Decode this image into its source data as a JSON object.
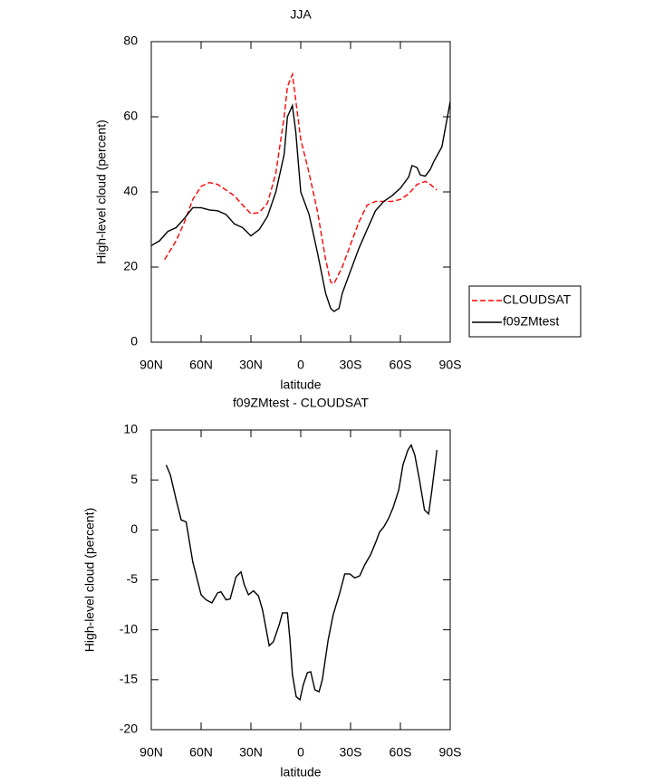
{
  "chart_data": [
    {
      "type": "line",
      "title": "JJA",
      "xlabel": "latitude",
      "ylabel": "High-level cloud (percent)",
      "xlim": [
        90,
        -90
      ],
      "xticks": [
        {
          "value": 90,
          "label": "90N"
        },
        {
          "value": 60,
          "label": "60N"
        },
        {
          "value": 30,
          "label": "30N"
        },
        0,
        {
          "value": -30,
          "label": "30S"
        },
        {
          "value": -60,
          "label": "60S"
        },
        {
          "value": -90,
          "label": "90S"
        }
      ],
      "ylim": [
        0,
        80
      ],
      "yticks": [
        0,
        20,
        40,
        60,
        80
      ],
      "legend": "right",
      "series": [
        {
          "name": "CLOUDSAT",
          "color": "#ff0000",
          "style": "dashed",
          "x": [
            82,
            75,
            70,
            65,
            60,
            55,
            50,
            45,
            40,
            35,
            30,
            25,
            20,
            15,
            10,
            8,
            5,
            0,
            -5,
            -10,
            -15,
            -18,
            -20,
            -25,
            -30,
            -35,
            -40,
            -45,
            -50,
            -55,
            -60,
            -65,
            -70,
            -75,
            -78,
            -82
          ],
          "values": [
            22,
            27,
            32,
            38,
            41.5,
            42.5,
            42,
            40.5,
            39,
            36.5,
            34.2,
            34.5,
            37,
            45,
            60,
            68,
            71.3,
            54,
            45,
            35,
            22,
            16,
            15.6,
            20,
            26,
            32,
            36.5,
            37.5,
            37.5,
            37.5,
            38,
            39.5,
            42,
            42.8,
            42,
            40.5
          ]
        },
        {
          "name": "f09ZMtest",
          "color": "#000000",
          "style": "solid",
          "x": [
            90,
            85,
            80,
            75,
            70,
            65,
            60,
            55,
            50,
            45,
            40,
            35,
            30,
            25,
            20,
            15,
            10,
            8,
            5,
            3,
            0,
            -5,
            -10,
            -15,
            -18,
            -20,
            -23,
            -25,
            -30,
            -35,
            -40,
            -45,
            -50,
            -55,
            -60,
            -65,
            -67,
            -70,
            -72,
            -75,
            -78,
            -80,
            -85,
            -90
          ],
          "values": [
            25.7,
            27,
            29.5,
            30.5,
            33,
            35.8,
            35.8,
            35.2,
            35,
            34,
            31.5,
            30.5,
            28.3,
            30,
            33.5,
            40,
            50,
            60,
            63,
            56,
            40,
            34,
            24,
            13,
            9,
            8.2,
            9,
            13,
            19,
            25,
            30,
            35,
            37.5,
            39,
            41,
            44,
            47,
            46.5,
            44.5,
            44.2,
            46,
            48,
            52,
            64
          ]
        }
      ]
    },
    {
      "type": "line",
      "title": "f09ZMtest - CLOUDSAT",
      "xlabel": "latitude",
      "ylabel": "High-level cloud (percent)",
      "xlim": [
        90,
        -90
      ],
      "xticks": [
        {
          "value": 90,
          "label": "90N"
        },
        {
          "value": 60,
          "label": "60N"
        },
        {
          "value": 30,
          "label": "30N"
        },
        0,
        {
          "value": -30,
          "label": "30S"
        },
        {
          "value": -60,
          "label": "60S"
        },
        {
          "value": -90,
          "label": "90S"
        }
      ],
      "ylim": [
        -20,
        10
      ],
      "yticks": [
        -20,
        -15,
        -10,
        -5,
        0,
        5,
        10
      ],
      "series": [
        {
          "color": "#000000",
          "style": "solid",
          "x": [
            81,
            78.5,
            75,
            72,
            69,
            65,
            60,
            57,
            53.5,
            50,
            48,
            45,
            42.5,
            39,
            36,
            34,
            31.5,
            28.5,
            25.5,
            23,
            19,
            16.5,
            13,
            11,
            8,
            6.5,
            5,
            2.7,
            0.5,
            -1.5,
            -4,
            -6,
            -8.5,
            -11,
            -13,
            -16.5,
            -19.5,
            -23.5,
            -26.5,
            -29.5,
            -32.5,
            -35.5,
            -38.5,
            -42,
            -45,
            -47.5,
            -50,
            -53,
            -55.5,
            -59,
            -61.5,
            -64.5,
            -66.5,
            -68.7,
            -71.5,
            -74.5,
            -77,
            -79,
            -82
          ],
          "values": [
            6.5,
            5.5,
            3,
            1,
            0.8,
            -3.2,
            -6.5,
            -7,
            -7.3,
            -6.3,
            -6.2,
            -7,
            -6.9,
            -4.7,
            -4.2,
            -5.5,
            -6.5,
            -6.1,
            -6.6,
            -8,
            -11.6,
            -11.2,
            -9.5,
            -8.3,
            -8.3,
            -11,
            -14.5,
            -16.7,
            -17,
            -15.5,
            -14.3,
            -14.2,
            -16,
            -16.2,
            -15,
            -11,
            -8.5,
            -6.3,
            -4.4,
            -4.4,
            -4.8,
            -4.6,
            -3.5,
            -2.5,
            -1.3,
            -0.2,
            0.3,
            1.2,
            2.2,
            4,
            6.5,
            8,
            8.5,
            7.5,
            5,
            2,
            1.6,
            4,
            8
          ]
        }
      ]
    }
  ]
}
